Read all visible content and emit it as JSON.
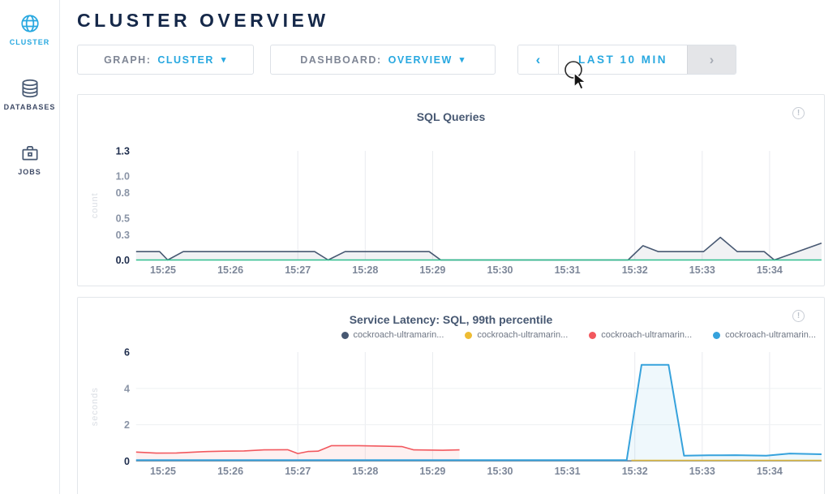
{
  "header": {
    "title": "CLUSTER OVERVIEW"
  },
  "sidebar": {
    "items": [
      {
        "label": "CLUSTER",
        "icon": "globe-icon",
        "active": true
      },
      {
        "label": "DATABASES",
        "icon": "databases-icon",
        "active": false
      },
      {
        "label": "JOBS",
        "icon": "briefcase-icon",
        "active": false
      }
    ]
  },
  "controls": {
    "graph": {
      "label": "GRAPH:",
      "value": "CLUSTER",
      "caret": "▾"
    },
    "dashboard": {
      "label": "DASHBOARD:",
      "value": "OVERVIEW",
      "caret": "▾"
    },
    "time_range": {
      "prev": "‹",
      "label": "LAST 10 MIN",
      "next": "›",
      "next_disabled": true
    }
  },
  "info_glyph": "!",
  "colors": {
    "accent_cyan": "#28a8e0",
    "navy": "#152849",
    "slate": "#475872",
    "green": "#2fbe8e",
    "red": "#f2585e",
    "blue": "#36a2dc",
    "yellow": "#eebc33",
    "tick_gray": "#7d8799",
    "tick_bold": "#1d2c4c",
    "grid": "#e9ebef",
    "panel_border": "#e3e6ea"
  },
  "charts": [
    {
      "type": "line",
      "title": "SQL Queries",
      "ylabel": "count",
      "ymax": 1.3,
      "x_domain": [
        24.6,
        34.77
      ],
      "yticks": [
        {
          "v": 0.0,
          "label": "0.0",
          "bold": true
        },
        {
          "v": 0.3,
          "label": "0.3"
        },
        {
          "v": 0.5,
          "label": "0.5"
        },
        {
          "v": 0.8,
          "label": "0.8"
        },
        {
          "v": 1.0,
          "label": "1.0"
        },
        {
          "v": 1.3,
          "label": "1.3",
          "bold": true
        }
      ],
      "xticks": [
        {
          "m": 25,
          "label": "15:25"
        },
        {
          "m": 26,
          "label": "15:26"
        },
        {
          "m": 27,
          "label": "15:27"
        },
        {
          "m": 28,
          "label": "15:28"
        },
        {
          "m": 29,
          "label": "15:29"
        },
        {
          "m": 30,
          "label": "15:30"
        },
        {
          "m": 31,
          "label": "15:31"
        },
        {
          "m": 32,
          "label": "15:32"
        },
        {
          "m": 33,
          "label": "15:33"
        },
        {
          "m": 34,
          "label": "15:34"
        }
      ],
      "grid_minutes": [
        27,
        28,
        29,
        32,
        33,
        34
      ],
      "hgrid": [],
      "series": [
        {
          "name": "sql-queries",
          "color": "#475872",
          "fill": "rgba(71,88,114,0.08)",
          "width": 1.6,
          "points": [
            [
              24.6,
              0.1
            ],
            [
              24.95,
              0.1
            ],
            [
              25.07,
              0
            ],
            [
              25.3,
              0.1
            ],
            [
              27.25,
              0.1
            ],
            [
              27.45,
              0
            ],
            [
              27.7,
              0.1
            ],
            [
              28.95,
              0.1
            ],
            [
              29.12,
              0
            ],
            [
              31.9,
              0
            ],
            [
              32.12,
              0.17
            ],
            [
              32.35,
              0.1
            ],
            [
              33.02,
              0.1
            ],
            [
              33.27,
              0.27
            ],
            [
              33.52,
              0.1
            ],
            [
              33.92,
              0.1
            ],
            [
              34.07,
              0
            ],
            [
              34.77,
              0.2
            ]
          ]
        },
        {
          "name": "baseline-green",
          "color": "#2fbe8e",
          "width": 1.4,
          "points": [
            [
              24.6,
              0
            ],
            [
              34.77,
              0
            ]
          ]
        }
      ]
    },
    {
      "type": "line",
      "title": "Service Latency: SQL, 99th percentile",
      "ylabel": "seconds",
      "ymax": 6,
      "x_domain": [
        24.6,
        34.77
      ],
      "yticks": [
        {
          "v": 0,
          "label": "0",
          "bold": true
        },
        {
          "v": 2,
          "label": "2"
        },
        {
          "v": 4,
          "label": "4"
        },
        {
          "v": 6,
          "label": "6",
          "bold": true
        }
      ],
      "xticks": [
        {
          "m": 25,
          "label": "15:25"
        },
        {
          "m": 26,
          "label": "15:26"
        },
        {
          "m": 27,
          "label": "15:27"
        },
        {
          "m": 28,
          "label": "15:28"
        },
        {
          "m": 29,
          "label": "15:29"
        },
        {
          "m": 30,
          "label": "15:30"
        },
        {
          "m": 31,
          "label": "15:31"
        },
        {
          "m": 32,
          "label": "15:32"
        },
        {
          "m": 33,
          "label": "15:33"
        },
        {
          "m": 34,
          "label": "15:34"
        }
      ],
      "grid_minutes": [
        27,
        28,
        29,
        32,
        33,
        34
      ],
      "hgrid": [
        2,
        4
      ],
      "legend": [
        {
          "color": "#475872",
          "label": "cockroach-ultramarin..."
        },
        {
          "color": "#eebc33",
          "label": "cockroach-ultramarin..."
        },
        {
          "color": "#f2585e",
          "label": "cockroach-ultramarin..."
        },
        {
          "color": "#36a2dc",
          "label": "cockroach-ultramarin..."
        }
      ],
      "series": [
        {
          "name": "node-slate",
          "color": "#475872",
          "width": 1.2,
          "points": [
            [
              24.6,
              0.02
            ],
            [
              34.77,
              0.02
            ]
          ]
        },
        {
          "name": "node-yellow",
          "color": "#eebc33",
          "width": 1.6,
          "points": [
            [
              31.95,
              0.04
            ],
            [
              34.77,
              0.04
            ]
          ]
        },
        {
          "name": "node-red",
          "color": "#f2585e",
          "fill": "rgba(242,88,94,0.09)",
          "width": 1.6,
          "points": [
            [
              24.6,
              0.5
            ],
            [
              24.9,
              0.44
            ],
            [
              25.2,
              0.45
            ],
            [
              25.6,
              0.52
            ],
            [
              25.9,
              0.55
            ],
            [
              26.2,
              0.56
            ],
            [
              26.5,
              0.62
            ],
            [
              26.85,
              0.63
            ],
            [
              27.0,
              0.42
            ],
            [
              27.15,
              0.53
            ],
            [
              27.3,
              0.55
            ],
            [
              27.5,
              0.85
            ],
            [
              27.9,
              0.85
            ],
            [
              28.3,
              0.82
            ],
            [
              28.55,
              0.8
            ],
            [
              28.72,
              0.62
            ],
            [
              29.15,
              0.6
            ],
            [
              29.4,
              0.62
            ]
          ]
        },
        {
          "name": "node-blue",
          "color": "#36a2dc",
          "fill": "rgba(54,162,220,0.08)",
          "width": 2,
          "points": [
            [
              24.6,
              0.06
            ],
            [
              31.88,
              0.06
            ],
            [
              32.1,
              5.3
            ],
            [
              32.5,
              5.3
            ],
            [
              32.73,
              0.3
            ],
            [
              33.1,
              0.32
            ],
            [
              33.5,
              0.33
            ],
            [
              33.95,
              0.3
            ],
            [
              34.3,
              0.42
            ],
            [
              34.77,
              0.38
            ]
          ]
        }
      ]
    }
  ]
}
